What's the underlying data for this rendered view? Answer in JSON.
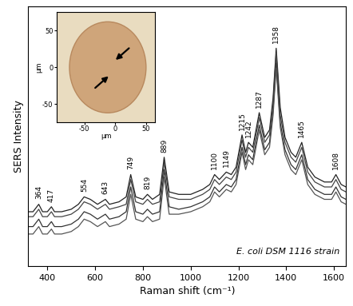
{
  "chart_data": [
    {
      "type": "line",
      "xlabel": "Raman shift (cm⁻¹)",
      "ylabel": "SERS Intensity",
      "x": [
        320,
        340,
        364,
        380,
        400,
        417,
        430,
        460,
        500,
        530,
        554,
        580,
        610,
        643,
        660,
        700,
        730,
        749,
        770,
        800,
        819,
        840,
        870,
        889,
        910,
        950,
        1000,
        1050,
        1080,
        1100,
        1120,
        1149,
        1170,
        1190,
        1215,
        1230,
        1242,
        1260,
        1287,
        1310,
        1330,
        1345,
        1358,
        1375,
        1395,
        1420,
        1440,
        1465,
        1490,
        1520,
        1560,
        1590,
        1608,
        1630,
        1650
      ],
      "series": [
        {
          "color": "#222222",
          "values": [
            22,
            22,
            25,
            22,
            22,
            24,
            22,
            22,
            23,
            25,
            28,
            27,
            25,
            27,
            25,
            26,
            28,
            37,
            28,
            27,
            29,
            27,
            29,
            44,
            30,
            29,
            29,
            31,
            33,
            37,
            35,
            38,
            37,
            40,
            53,
            46,
            50,
            48,
            62,
            52,
            55,
            68,
            88,
            64,
            52,
            46,
            44,
            50,
            40,
            36,
            34,
            34,
            37,
            33,
            32
          ]
        },
        {
          "color": "#444444",
          "values": [
            20,
            20,
            23,
            20,
            20,
            22,
            20,
            20,
            21,
            23,
            26,
            25,
            23,
            25,
            23,
            24,
            25,
            35,
            26,
            25,
            27,
            25,
            26,
            42,
            28,
            27,
            27,
            29,
            31,
            35,
            33,
            36,
            35,
            38,
            51,
            44,
            48,
            46,
            60,
            50,
            53,
            66,
            86,
            61,
            50,
            44,
            42,
            48,
            38,
            34,
            32,
            32,
            35,
            31,
            30
          ]
        },
        {
          "color": "#333333",
          "values": [
            16,
            16,
            19,
            16,
            16,
            18,
            16,
            16,
            17,
            19,
            22,
            21,
            19,
            21,
            19,
            20,
            22,
            32,
            22,
            21,
            23,
            21,
            22,
            39,
            24,
            23,
            24,
            26,
            28,
            32,
            30,
            33,
            32,
            35,
            48,
            41,
            45,
            43,
            57,
            47,
            50,
            63,
            82,
            58,
            47,
            41,
            39,
            45,
            35,
            31,
            29,
            29,
            32,
            28,
            27
          ]
        },
        {
          "color": "#555555",
          "values": [
            13,
            13,
            16,
            13,
            13,
            15,
            13,
            13,
            14,
            16,
            19,
            18,
            16,
            18,
            16,
            17,
            19,
            29,
            19,
            18,
            20,
            18,
            19,
            36,
            21,
            21,
            22,
            24,
            26,
            30,
            28,
            31,
            30,
            33,
            46,
            39,
            43,
            41,
            55,
            45,
            48,
            61,
            80,
            56,
            45,
            39,
            37,
            43,
            33,
            29,
            27,
            27,
            30,
            26,
            25
          ]
        }
      ],
      "xlim": [
        320,
        1650
      ],
      "xticks": [
        400,
        600,
        800,
        1000,
        1200,
        1400,
        1600
      ],
      "ylim": [
        0,
        105
      ],
      "yticks": [],
      "tick_labels": "x",
      "annotations": [
        {
          "text": "364",
          "x": 364
        },
        {
          "text": "417",
          "x": 417
        },
        {
          "text": "554",
          "x": 554
        },
        {
          "text": "643",
          "x": 643
        },
        {
          "text": "749",
          "x": 749
        },
        {
          "text": "819",
          "x": 819
        },
        {
          "text": "889",
          "x": 889
        },
        {
          "text": "1100",
          "x": 1100
        },
        {
          "text": "1149",
          "x": 1149
        },
        {
          "text": "1215",
          "x": 1215
        },
        {
          "text": "1242",
          "x": 1242
        },
        {
          "text": "1287",
          "x": 1287
        },
        {
          "text": "1358",
          "x": 1358
        },
        {
          "text": "1465",
          "x": 1465
        },
        {
          "text": "1608",
          "x": 1608
        },
        {
          "text": "E. coli DSM 1116 strain"
        }
      ]
    },
    {
      "type": "image",
      "xlabel": "µm",
      "ylabel": "µm",
      "xlim": [
        -95,
        65
      ],
      "ylim": [
        -75,
        75
      ],
      "xticks": [
        -50,
        0,
        50
      ],
      "yticks": [
        -50,
        0,
        50
      ]
    }
  ]
}
